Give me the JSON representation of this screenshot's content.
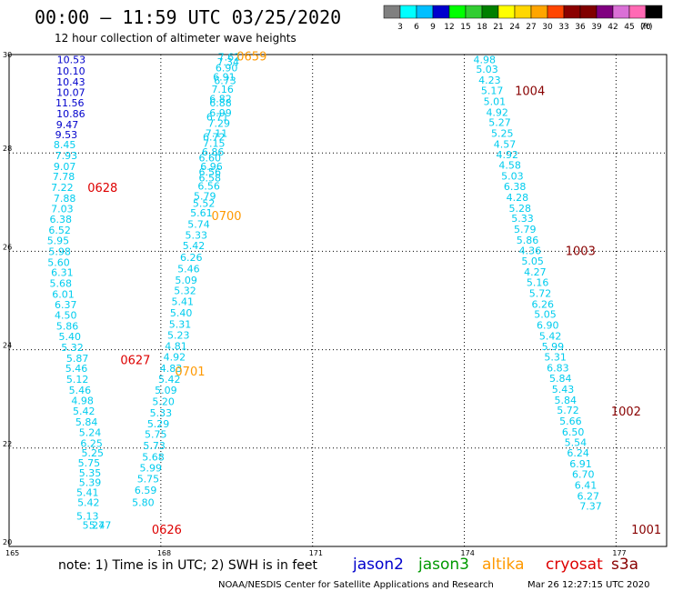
{
  "header": {
    "title": "00:00 – 11:59 UTC 03/25/2020",
    "subtitle": "12 hour collection of altimeter wave heights"
  },
  "colorbar": {
    "unit": "(ft)",
    "colors": [
      "#808080",
      "#00ffff",
      "#00bfff",
      "#0000cd",
      "#00ff00",
      "#32cd32",
      "#008000",
      "#ffff00",
      "#ffd700",
      "#ffa500",
      "#ff4500",
      "#8b0000",
      "#800000",
      "#800080",
      "#da70d6",
      "#ff69b4",
      "#000000"
    ],
    "ticks": [
      "3",
      "6",
      "9",
      "12",
      "15",
      "18",
      "21",
      "24",
      "27",
      "30",
      "33",
      "36",
      "39",
      "42",
      "45",
      "70"
    ]
  },
  "footer": {
    "note": "note:  1) Time is in UTC;  2) SWH is in feet",
    "credit": "NOAA/NESDIS Center for Satellite Applications and Research",
    "timestamp": "Mar 26 12:27:15 UTC 2020",
    "satellites": [
      {
        "name": "jason2",
        "color": "#0000cc"
      },
      {
        "name": "jason3",
        "color": "#009900"
      },
      {
        "name": "altika",
        "color": "#ff9900"
      },
      {
        "name": "cryosat",
        "color": "#dd0000"
      },
      {
        "name": "s3a",
        "color": "#880000"
      }
    ]
  },
  "chart_data": {
    "type": "scatter",
    "xlim": [
      165,
      178
    ],
    "ylim": [
      20,
      30
    ],
    "x_ticks": [
      "165",
      "168",
      "171",
      "174",
      "177"
    ],
    "y_ticks": [
      "20",
      "22",
      "24",
      "26",
      "28",
      "30"
    ],
    "grid": true,
    "value_colors": {
      "jason2": "#0000cc",
      "cyan": "#00ccee"
    },
    "tracks": [
      {
        "satellite": "jason2",
        "values": [
          "10.53",
          "10.10",
          "10.43",
          "10.07",
          "11.56",
          "10.86",
          "9.47",
          "9.53"
        ],
        "x": [
          166.23,
          166.22,
          166.22,
          166.22,
          166.2,
          166.22,
          166.15,
          166.13
        ],
        "y": [
          29.9,
          29.67,
          29.45,
          29.23,
          29.02,
          28.8,
          28.58,
          28.37
        ]
      },
      {
        "satellite": "cyan",
        "values": [
          "8.45",
          "7.93",
          "9.07",
          "7.78",
          "7.22",
          "7.88",
          "7.03",
          "6.38",
          "6.52",
          "5.95",
          "5.98",
          "5.60",
          "6.31",
          "5.68",
          "6.01",
          "6.37",
          "4.50",
          "5.86",
          "5.40",
          "5.32",
          "5.87",
          "5.46",
          "5.12",
          "5.46",
          "4.98",
          "5.42",
          "5.84",
          "5.24",
          "6.25",
          "5.25",
          "5.75",
          "5.35",
          "5.39",
          "5.41",
          "5.42",
          "5.13",
          "5.27",
          "5.47"
        ],
        "x": [
          166.1,
          166.13,
          166.1,
          166.08,
          166.05,
          166.1,
          166.05,
          166.02,
          166.0,
          165.97,
          166.0,
          165.98,
          166.05,
          166.02,
          166.07,
          166.12,
          166.12,
          166.15,
          166.2,
          166.25,
          166.35,
          166.33,
          166.35,
          166.4,
          166.45,
          166.48,
          166.53,
          166.6,
          166.63,
          166.65,
          166.58,
          166.6,
          166.6,
          166.55,
          166.57,
          166.55,
          166.67,
          166.8
        ],
        "y": [
          28.17,
          27.95,
          27.73,
          27.52,
          27.3,
          27.08,
          26.87,
          26.65,
          26.43,
          26.22,
          26.0,
          25.78,
          25.57,
          25.35,
          25.13,
          24.92,
          24.7,
          24.48,
          24.27,
          24.05,
          23.83,
          23.62,
          23.4,
          23.18,
          22.97,
          22.75,
          22.53,
          22.32,
          22.1,
          21.9,
          21.7,
          21.5,
          21.3,
          21.1,
          20.9,
          20.62,
          20.43,
          20.43
        ]
      },
      {
        "satellite": "cyan",
        "values": [
          "7.62",
          "7.34",
          "6.90",
          "6.91",
          "6.73",
          "7.16",
          "6.82",
          "6.88",
          "6.99",
          "6.71",
          "7.29",
          "7.11",
          "6.72",
          "7.15",
          "6.86",
          "6.60",
          "6.96",
          "6.56",
          "6.58",
          "6.56",
          "5.79",
          "5.52",
          "5.61",
          "5.74",
          "5.33",
          "5.42",
          "6.26",
          "5.46",
          "5.09",
          "5.32",
          "5.41",
          "5.40",
          "5.31",
          "5.23",
          "4.81",
          "4.92",
          "4.83",
          "5.42",
          "5.09",
          "5.20",
          "5.33",
          "5.29",
          "5.75",
          "5.73",
          "5.68",
          "5.99",
          "5.75",
          "6.59",
          "5.80"
        ],
        "x": [
          169.35,
          169.33,
          169.3,
          169.25,
          169.27,
          169.22,
          169.18,
          169.18,
          169.18,
          169.12,
          169.15,
          169.1,
          169.05,
          169.05,
          169.03,
          168.97,
          169.0,
          168.97,
          168.97,
          168.95,
          168.87,
          168.85,
          168.8,
          168.75,
          168.7,
          168.65,
          168.6,
          168.55,
          168.5,
          168.48,
          168.43,
          168.4,
          168.38,
          168.35,
          168.3,
          168.27,
          168.2,
          168.17,
          168.1,
          168.05,
          168.0,
          167.95,
          167.9,
          167.87,
          167.85,
          167.8,
          167.75,
          167.7,
          167.65
        ],
        "y": [
          29.95,
          29.85,
          29.73,
          29.55,
          29.47,
          29.3,
          29.1,
          29.02,
          28.82,
          28.73,
          28.6,
          28.4,
          28.33,
          28.2,
          28.02,
          27.9,
          27.73,
          27.62,
          27.5,
          27.33,
          27.13,
          26.98,
          26.78,
          26.55,
          26.33,
          26.12,
          25.88,
          25.65,
          25.42,
          25.2,
          24.98,
          24.75,
          24.52,
          24.3,
          24.08,
          23.85,
          23.62,
          23.4,
          23.18,
          22.95,
          22.72,
          22.5,
          22.28,
          22.05,
          21.82,
          21.6,
          21.38,
          21.15,
          20.9
        ]
      },
      {
        "satellite": "cyan",
        "values": [
          "4.98",
          "5.03",
          "4.23",
          "5.17",
          "5.01",
          "4.92",
          "5.27",
          "5.25",
          "4.57",
          "4.92",
          "4.58",
          "5.03",
          "6.38",
          "4.28",
          "5.28",
          "5.33",
          "5.79",
          "5.86",
          "4.36",
          "5.05",
          "4.27",
          "5.16",
          "5.72",
          "6.26",
          "5.05",
          "6.90",
          "5.42",
          "5.99",
          "5.31",
          "6.83",
          "5.84",
          "5.43",
          "5.84",
          "5.72",
          "5.66",
          "6.50",
          "5.54",
          "6.24",
          "6.91",
          "6.70",
          "6.41",
          "6.27",
          "7.37"
        ],
        "x": [
          174.4,
          174.45,
          174.5,
          174.55,
          174.6,
          174.65,
          174.7,
          174.75,
          174.8,
          174.85,
          174.9,
          174.95,
          175.0,
          175.05,
          175.1,
          175.15,
          175.2,
          175.25,
          175.3,
          175.35,
          175.4,
          175.45,
          175.5,
          175.55,
          175.6,
          175.65,
          175.7,
          175.75,
          175.8,
          175.85,
          175.9,
          175.95,
          176.0,
          176.05,
          176.1,
          176.15,
          176.2,
          176.25,
          176.3,
          176.35,
          176.4,
          176.45,
          176.5
        ],
        "y": [
          29.9,
          29.7,
          29.48,
          29.27,
          29.05,
          28.83,
          28.62,
          28.4,
          28.18,
          27.97,
          27.75,
          27.53,
          27.32,
          27.1,
          26.88,
          26.67,
          26.45,
          26.23,
          26.02,
          25.8,
          25.58,
          25.37,
          25.15,
          24.93,
          24.72,
          24.5,
          24.28,
          24.07,
          23.85,
          23.63,
          23.42,
          23.2,
          22.98,
          22.77,
          22.55,
          22.33,
          22.12,
          21.9,
          21.68,
          21.47,
          21.25,
          21.03,
          20.82
        ]
      }
    ],
    "time_labels": [
      {
        "text": "0659",
        "satellite": "altika",
        "x": 169.5,
        "y": 29.97
      },
      {
        "text": "0628",
        "satellite": "cryosat",
        "x": 166.55,
        "y": 27.3
      },
      {
        "text": "0700",
        "satellite": "altika",
        "x": 169.0,
        "y": 26.73
      },
      {
        "text": "0627",
        "satellite": "cryosat",
        "x": 167.2,
        "y": 23.8
      },
      {
        "text": "0701",
        "satellite": "altika",
        "x": 168.28,
        "y": 23.57
      },
      {
        "text": "0626",
        "satellite": "cryosat",
        "x": 167.82,
        "y": 20.35
      },
      {
        "text": "1004",
        "satellite": "s3a",
        "x": 175.0,
        "y": 29.27
      },
      {
        "text": "1003",
        "satellite": "s3a",
        "x": 176.0,
        "y": 26.02
      },
      {
        "text": "1002",
        "satellite": "s3a",
        "x": 176.9,
        "y": 22.75
      },
      {
        "text": "1001",
        "satellite": "s3a",
        "x": 177.3,
        "y": 20.35
      }
    ]
  }
}
